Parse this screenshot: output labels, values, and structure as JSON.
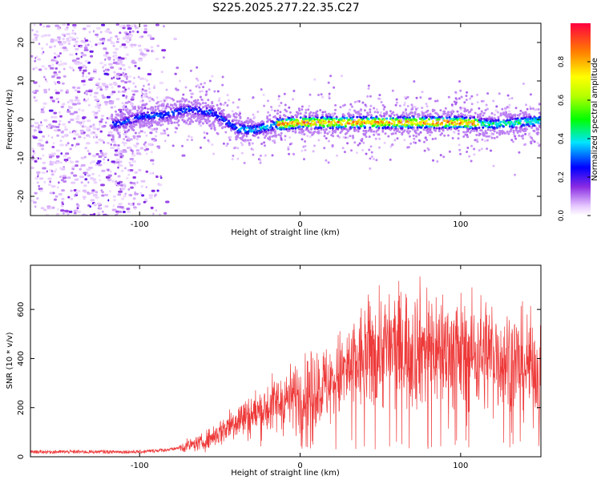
{
  "title": "S225.2025.277.22.35.C27",
  "chart_data": [
    {
      "type": "heatmap",
      "xlabel": "Height of straight line (km)",
      "ylabel": "Frequency (Hz)",
      "xlim": [
        -168,
        150
      ],
      "ylim": [
        -25,
        25
      ],
      "x_ticks": [
        -100,
        0,
        100
      ],
      "y_ticks": [
        -20,
        -10,
        0,
        10,
        20
      ],
      "grid": false,
      "colorbar": {
        "label": "Normalized spectral amplitude",
        "range": [
          0,
          1
        ],
        "ticks": [
          "0.0",
          "0.2",
          "0.4",
          "0.6",
          "0.8"
        ]
      },
      "ridge": {
        "x": [
          -115,
          -100,
          -85,
          -70,
          -55,
          -40,
          -30,
          -15,
          0,
          50,
          100,
          120,
          150
        ],
        "y": [
          -1,
          1,
          1.5,
          3,
          2,
          -2,
          -2.5,
          -1,
          -0.5,
          -0.5,
          -0.5,
          -1,
          0
        ]
      }
    },
    {
      "type": "line",
      "xlabel": "Height of straight line (km)",
      "ylabel": "SNR (10 * v/v)",
      "xlim": [
        -168,
        150
      ],
      "ylim": [
        0,
        780
      ],
      "x_ticks": [
        -100,
        0,
        100
      ],
      "y_ticks": [
        0,
        200,
        400,
        600
      ],
      "grid": false,
      "series": [
        {
          "color": "#ee3a3a",
          "envelope": {
            "x": [
              -168,
              -100,
              -80,
              -60,
              -50,
              -40,
              -30,
              -20,
              -10,
              0,
              10,
              20,
              25,
              35,
              50,
              80,
              100,
              120,
              150
            ],
            "mean": [
              20,
              20,
              30,
              60,
              100,
              150,
              170,
              200,
              230,
              250,
              280,
              300,
              330,
              380,
              440,
              450,
              420,
              420,
              350
            ]
          }
        }
      ]
    }
  ]
}
